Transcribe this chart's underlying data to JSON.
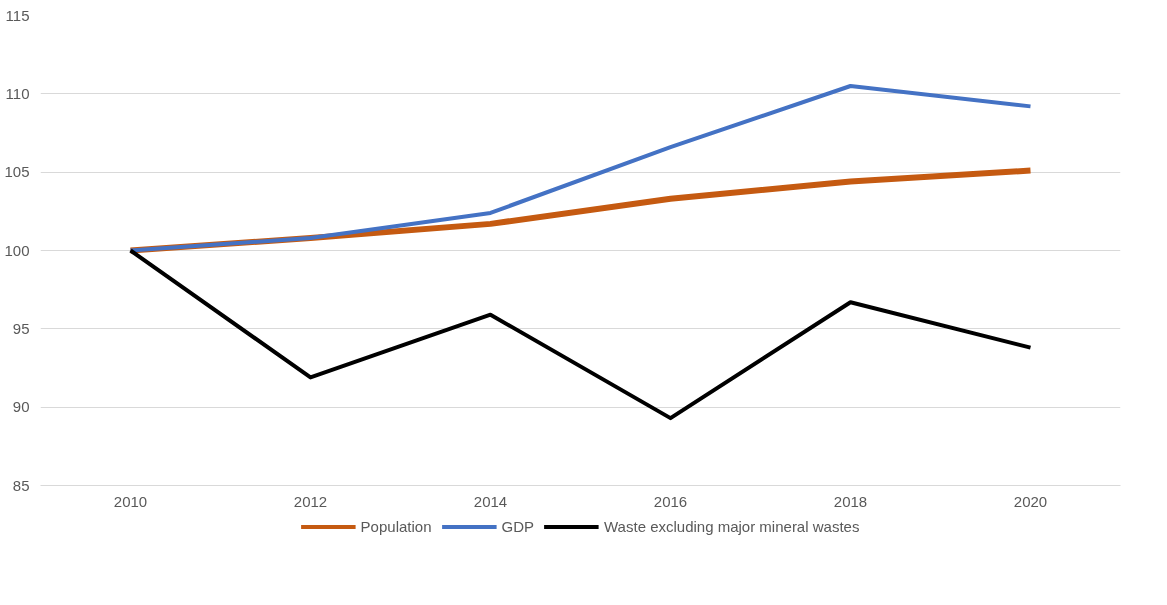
{
  "chart_data": {
    "type": "line",
    "categories": [
      "2010",
      "2012",
      "2014",
      "2016",
      "2018",
      "2020"
    ],
    "series": [
      {
        "name": "Population",
        "color": "#c55a11",
        "values": [
          100,
          100.8,
          101.7,
          103.3,
          104.4,
          105.1
        ]
      },
      {
        "name": "GDP",
        "color": "#4472c4",
        "values": [
          100,
          100.8,
          102.4,
          106.6,
          110.5,
          109.2
        ]
      },
      {
        "name": "Waste excluding major mineral wastes",
        "color": "#000000",
        "values": [
          100,
          91.9,
          95.9,
          89.3,
          96.7,
          93.8
        ]
      }
    ],
    "ylim": [
      85,
      115
    ],
    "yticks": [
      85,
      90,
      95,
      100,
      105,
      110,
      115
    ],
    "grid": "y",
    "legend": "bottom",
    "marker": "none",
    "line_style": "solid"
  }
}
